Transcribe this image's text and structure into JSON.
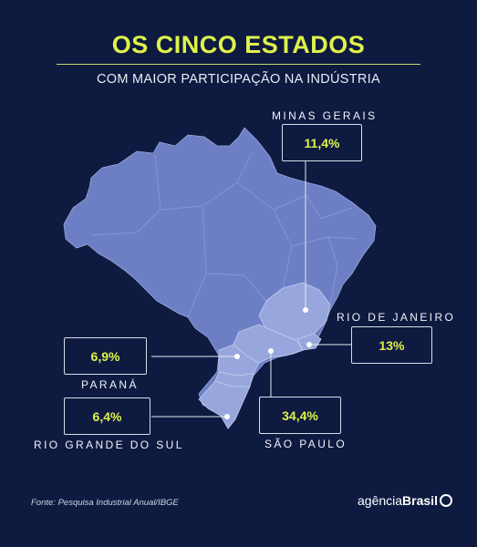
{
  "title": "OS CINCO ESTADOS",
  "subtitle": "COM MAIOR PARTICIPAÇÃO NA INDÚSTRIA",
  "states": [
    {
      "name": "MINAS GERAIS",
      "value": "11,4%"
    },
    {
      "name": "RIO DE JANEIRO",
      "value": "13%"
    },
    {
      "name": "PARANÁ",
      "value": "6,9%"
    },
    {
      "name": "RIO GRANDE DO SUL",
      "value": "6,4%"
    },
    {
      "name": "SÃO PAULO",
      "value": "34,4%"
    }
  ],
  "source": "Fonte: Pesquisa Industrial Anual/IBGE",
  "logo": {
    "light": "agência",
    "bold": "Brasil"
  },
  "colors": {
    "background": "#0e1a40",
    "map_fill": "#6d7fc4",
    "highlight_fill": "#96a6dc",
    "accent": "#dff24a"
  }
}
